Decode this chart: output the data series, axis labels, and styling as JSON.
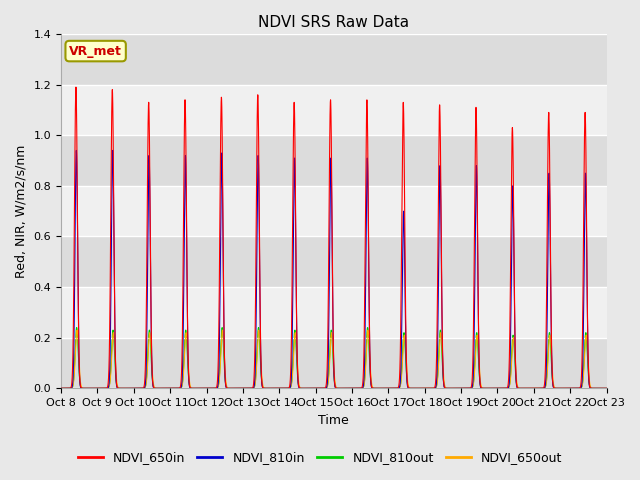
{
  "title": "NDVI SRS Raw Data",
  "xlabel": "Time",
  "ylabel": "Red, NIR, W/m2/s/nm",
  "ylim": [
    0,
    1.4
  ],
  "annotation_text": "VR_met",
  "background_color": "#e8e8e8",
  "plot_bg_color": "#f0f0f0",
  "grid_color": "white",
  "colors": {
    "NDVI_650in": "#ff0000",
    "NDVI_810in": "#0000cc",
    "NDVI_810out": "#00cc00",
    "NDVI_650out": "#ffaa00"
  },
  "legend_labels": [
    "NDVI_650in",
    "NDVI_810in",
    "NDVI_810out",
    "NDVI_650out"
  ],
  "x_tick_labels": [
    "Oct 8",
    "Oct 9",
    "Oct 10",
    "Oct 11",
    "Oct 12",
    "Oct 13",
    "Oct 14",
    "Oct 15",
    "Oct 16",
    "Oct 17",
    "Oct 18",
    "Oct 19",
    "Oct 20",
    "Oct 21",
    "Oct 22",
    "Oct 23"
  ],
  "title_fontsize": 11,
  "label_fontsize": 9,
  "tick_fontsize": 8,
  "peak_650in": [
    1.19,
    1.18,
    1.13,
    1.14,
    1.15,
    1.16,
    1.13,
    1.14,
    1.14,
    1.13,
    1.12,
    1.11,
    1.03,
    1.09,
    1.09
  ],
  "peak_810in": [
    0.94,
    0.94,
    0.92,
    0.92,
    0.93,
    0.92,
    0.91,
    0.91,
    0.91,
    0.7,
    0.88,
    0.88,
    0.8,
    0.85,
    0.85
  ],
  "peak_810out": [
    0.24,
    0.23,
    0.23,
    0.23,
    0.24,
    0.24,
    0.23,
    0.23,
    0.24,
    0.22,
    0.23,
    0.22,
    0.21,
    0.22,
    0.22
  ],
  "peak_650out": [
    0.23,
    0.22,
    0.22,
    0.22,
    0.23,
    0.23,
    0.22,
    0.22,
    0.23,
    0.21,
    0.22,
    0.21,
    0.2,
    0.21,
    0.21
  ]
}
